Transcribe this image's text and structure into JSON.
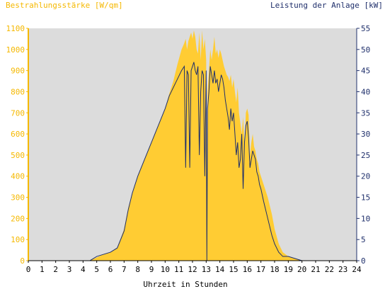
{
  "chart_data": {
    "type": "area",
    "title_left": "Bestrahlungsstärke [W/qm]",
    "title_right": "Leistung der Anlage [kW]",
    "xlabel": "Uhrzeit in Stunden",
    "xlim": [
      0,
      24
    ],
    "x_ticks": [
      0,
      1,
      2,
      3,
      4,
      5,
      6,
      7,
      8,
      9,
      10,
      11,
      12,
      13,
      14,
      15,
      16,
      17,
      18,
      19,
      20,
      21,
      22,
      23,
      24
    ],
    "y_left_lim": [
      0,
      1100
    ],
    "y_left_ticks": [
      0,
      100,
      200,
      300,
      400,
      500,
      600,
      700,
      800,
      900,
      1000,
      1100
    ],
    "y_right_lim": [
      0,
      55
    ],
    "y_right_ticks": [
      0,
      5,
      10,
      15,
      20,
      25,
      30,
      35,
      40,
      45,
      50,
      55
    ],
    "colors": {
      "plot_background": "#dcdcdc",
      "irradiance_fill": "#ffcc33",
      "power_line": "#1f2f6b",
      "left_axis": "#f5b800",
      "right_axis": "#1f2f6b"
    },
    "series": [
      {
        "axis": "left",
        "style": "area",
        "x": [
          0,
          4.5,
          5.0,
          5.5,
          6.0,
          6.5,
          7.0,
          7.3,
          7.6,
          8.0,
          8.5,
          9.0,
          9.5,
          10.0,
          10.3,
          10.6,
          10.9,
          11.2,
          11.4,
          11.5,
          11.6,
          11.7,
          11.8,
          11.9,
          12.0,
          12.1,
          12.2,
          12.3,
          12.4,
          12.5,
          12.6,
          12.7,
          12.8,
          12.9,
          13.0,
          13.05,
          13.1,
          13.2,
          13.3,
          13.4,
          13.5,
          13.6,
          13.7,
          13.8,
          13.9,
          14.0,
          14.1,
          14.2,
          14.3,
          14.4,
          14.5,
          14.6,
          14.7,
          14.8,
          14.9,
          15.0,
          15.1,
          15.2,
          15.3,
          15.4,
          15.5,
          15.6,
          15.7,
          15.8,
          15.9,
          16.0,
          16.1,
          16.2,
          16.3,
          16.4,
          16.5,
          16.6,
          16.7,
          16.8,
          16.9,
          17.0,
          17.2,
          17.5,
          17.8,
          18.0,
          18.3,
          18.6,
          19.0,
          19.5,
          20.0,
          20.3,
          20.5,
          24
        ],
        "y": [
          0,
          0,
          15,
          30,
          40,
          60,
          150,
          250,
          320,
          400,
          480,
          560,
          640,
          720,
          790,
          850,
          930,
          1000,
          1030,
          1050,
          1000,
          1040,
          1060,
          1080,
          1050,
          1090,
          1060,
          1000,
          980,
          1080,
          950,
          1090,
          1000,
          1050,
          950,
          0,
          800,
          900,
          1000,
          950,
          1000,
          1060,
          980,
          1000,
          960,
          1000,
          980,
          950,
          920,
          900,
          880,
          870,
          850,
          880,
          820,
          860,
          800,
          750,
          820,
          700,
          650,
          600,
          680,
          550,
          700,
          720,
          690,
          500,
          560,
          600,
          540,
          520,
          480,
          460,
          420,
          400,
          360,
          300,
          220,
          150,
          80,
          40,
          20,
          10,
          0,
          0,
          0,
          0
        ]
      },
      {
        "axis": "right",
        "style": "line",
        "x": [
          0,
          4.5,
          5.0,
          5.5,
          6.0,
          6.5,
          7.0,
          7.3,
          7.6,
          8.0,
          8.5,
          9.0,
          9.5,
          10.0,
          10.3,
          10.6,
          10.9,
          11.2,
          11.4,
          11.5,
          11.6,
          11.7,
          11.8,
          11.9,
          12.0,
          12.1,
          12.2,
          12.3,
          12.4,
          12.5,
          12.6,
          12.7,
          12.8,
          12.9,
          13.0,
          13.05,
          13.1,
          13.2,
          13.3,
          13.4,
          13.5,
          13.6,
          13.7,
          13.8,
          13.9,
          14.0,
          14.1,
          14.2,
          14.3,
          14.4,
          14.5,
          14.6,
          14.7,
          14.8,
          14.9,
          15.0,
          15.1,
          15.2,
          15.3,
          15.4,
          15.5,
          15.6,
          15.7,
          15.8,
          15.9,
          16.0,
          16.1,
          16.2,
          16.3,
          16.4,
          16.5,
          16.6,
          16.7,
          16.8,
          16.9,
          17.0,
          17.2,
          17.5,
          17.8,
          18.0,
          18.3,
          18.6,
          19.0,
          19.5,
          20.0,
          20.3,
          20.5,
          24
        ],
        "y": [
          0,
          0,
          1,
          1.5,
          2,
          3,
          7,
          12,
          16,
          20,
          24,
          28,
          32,
          36,
          39,
          41,
          43,
          45,
          46,
          22,
          45,
          44,
          22,
          45,
          46,
          47,
          45,
          44,
          46,
          25,
          40,
          45,
          44,
          20,
          45,
          0,
          36,
          40,
          46,
          44,
          42,
          45,
          42,
          43,
          40,
          42,
          44,
          43,
          41,
          38,
          36,
          34,
          31,
          36,
          33,
          35,
          30,
          25,
          28,
          22,
          24,
          30,
          17,
          28,
          32,
          33,
          29,
          22,
          24,
          26,
          25,
          24,
          21,
          20,
          18,
          17,
          14,
          10,
          6,
          4,
          2,
          1,
          1,
          0.5,
          0,
          0,
          0,
          0
        ]
      }
    ]
  }
}
